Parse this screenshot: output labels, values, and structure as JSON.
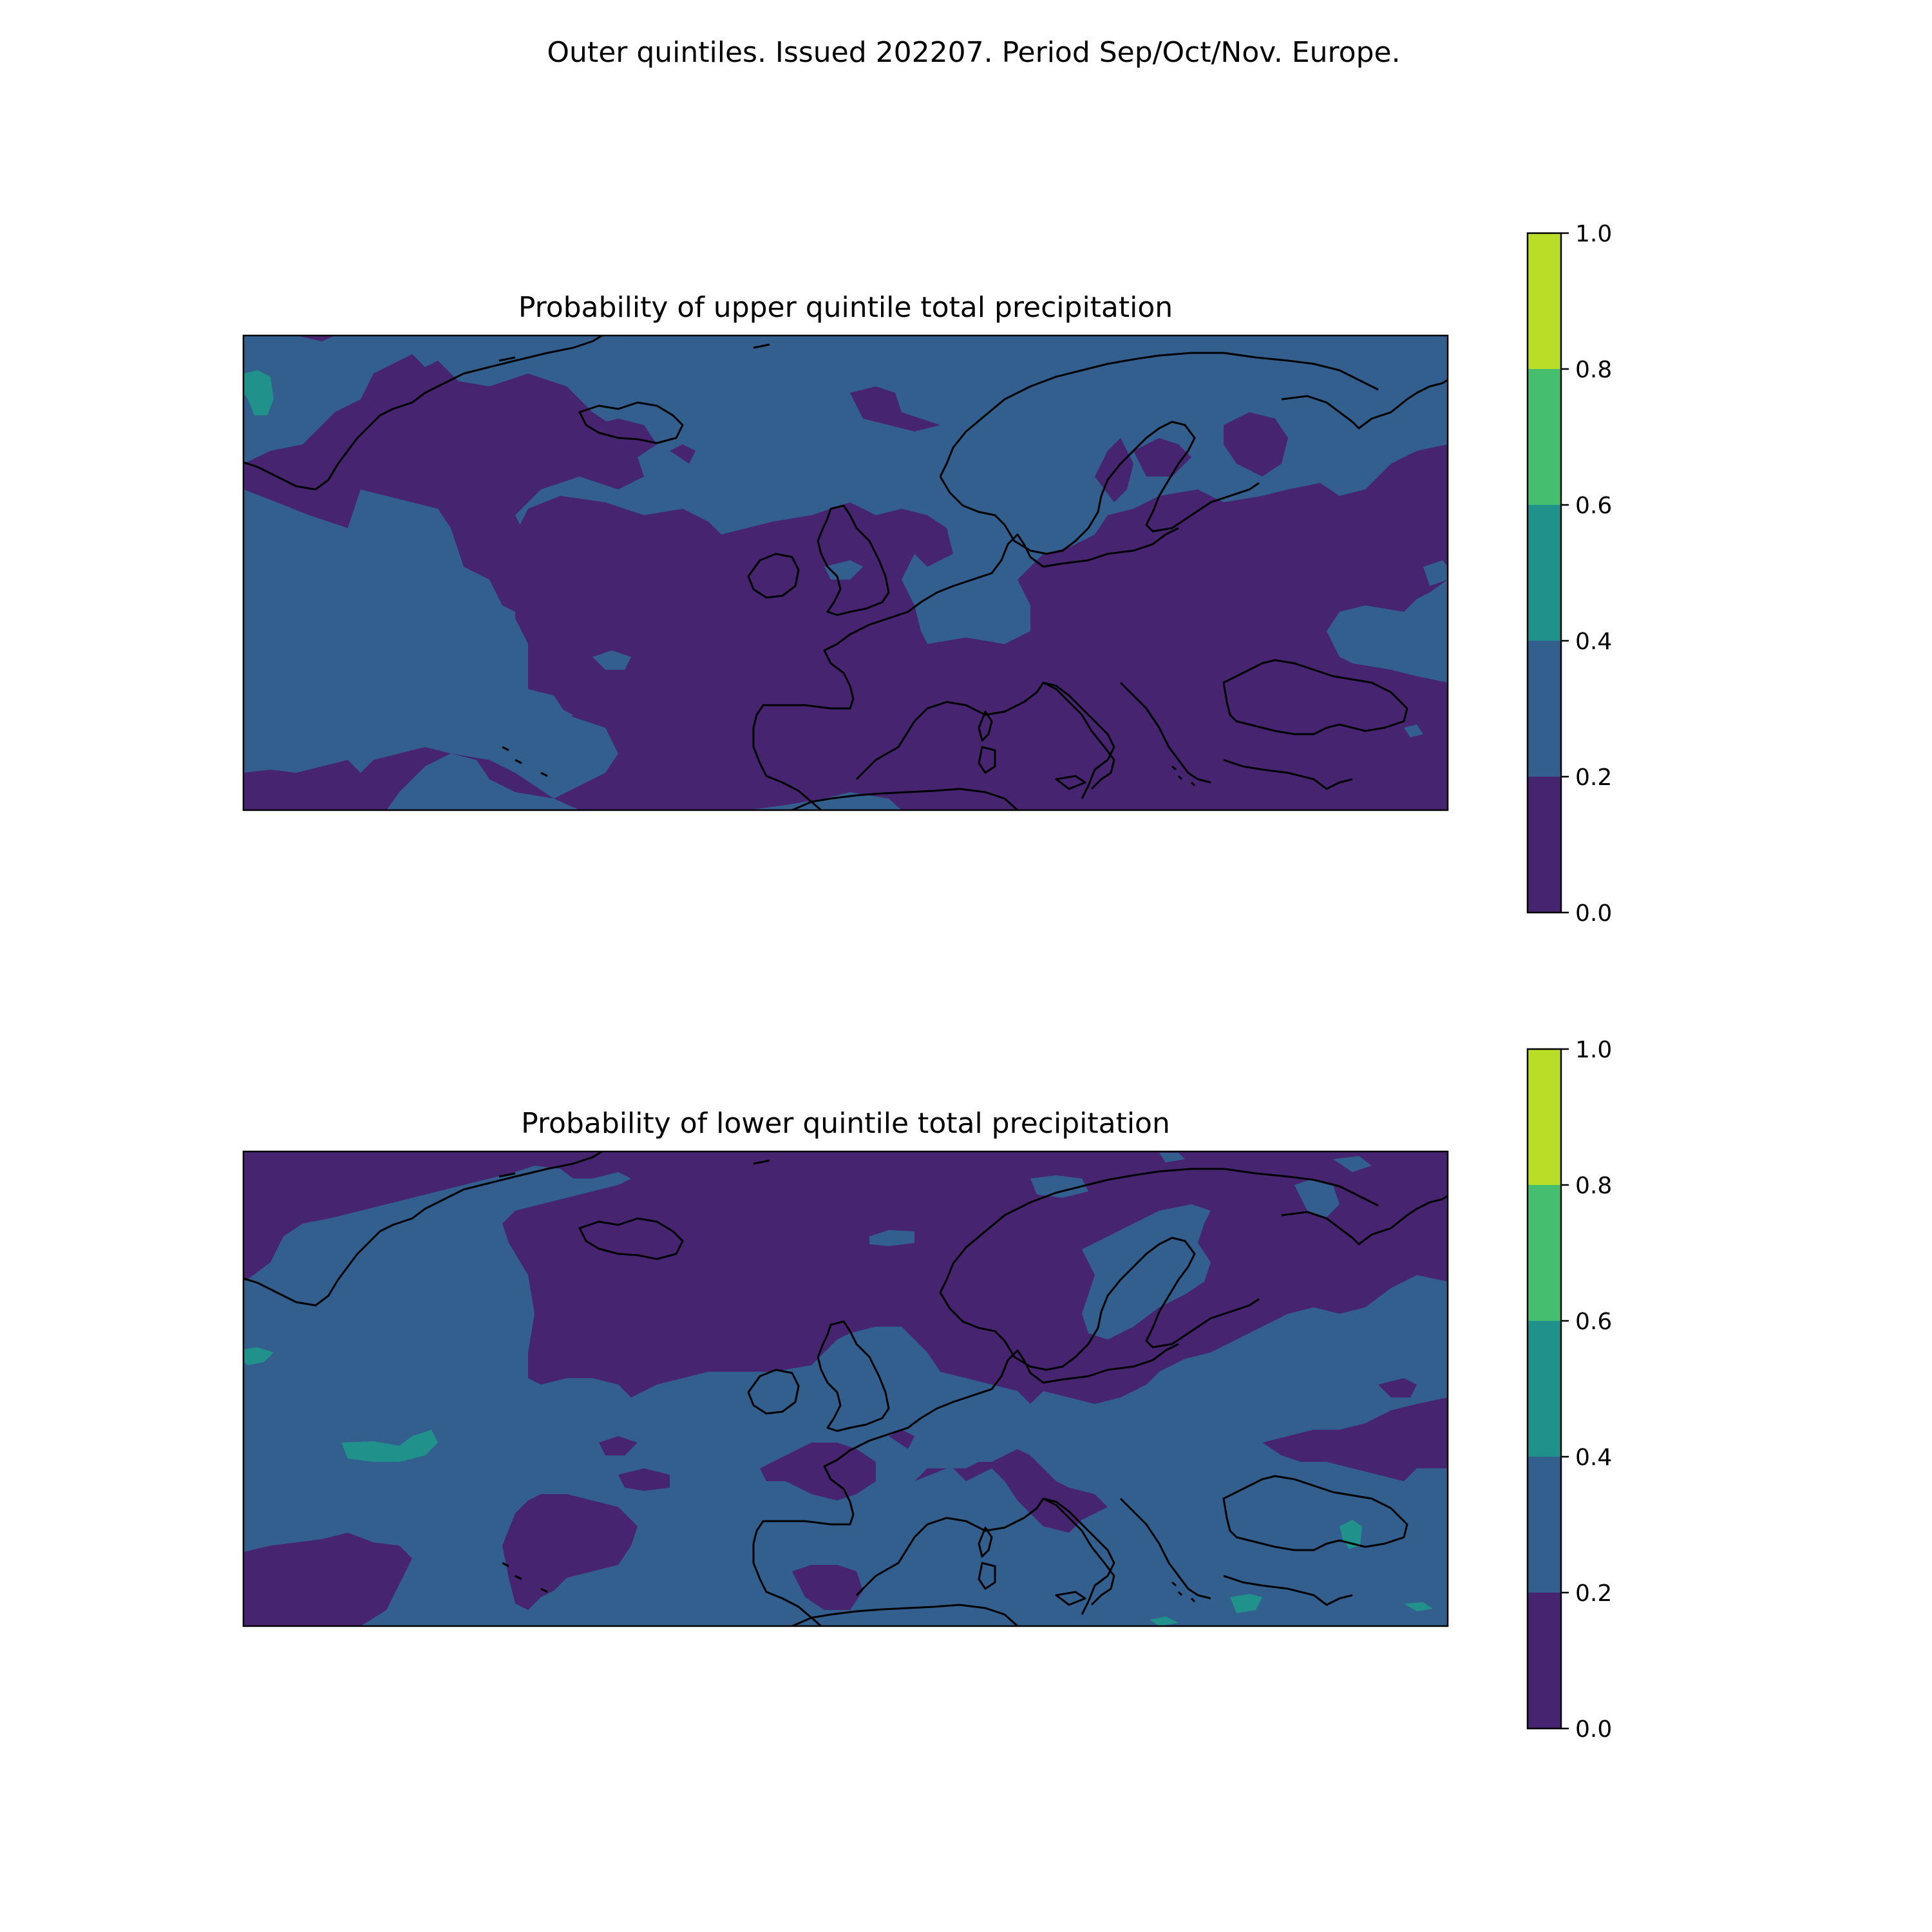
{
  "figure": {
    "suptitle": "Outer quintiles. Issued 202207. Period Sep/Oct/Nov. Europe."
  },
  "colors": {
    "levels": [
      "#440154",
      "#31688e",
      "#21918c",
      "#35b779",
      "#fde725"
    ],
    "band_0_0_0_2": "#46246f",
    "band_0_2_0_4": "#325f8d",
    "band_0_4_0_6": "#21918c",
    "band_0_6_0_8": "#45bf6f",
    "band_0_8_1_0": "#bade28",
    "coastline": "#000000",
    "frame": "#000000"
  },
  "chart_data": [
    {
      "type": "heatmap",
      "title": "Probability of upper quintile total precipitation",
      "colorbar": {
        "range": [
          0.0,
          1.0
        ],
        "ticks": [
          "0.0",
          "0.2",
          "0.4",
          "0.6",
          "0.8",
          "1.0"
        ],
        "bands": [
          {
            "from": 0.0,
            "to": 0.2,
            "color": "#46246f"
          },
          {
            "from": 0.2,
            "to": 0.4,
            "color": "#325f8d"
          },
          {
            "from": 0.4,
            "to": 0.6,
            "color": "#21918c"
          },
          {
            "from": 0.6,
            "to": 0.8,
            "color": "#45bf6f"
          },
          {
            "from": 0.8,
            "to": 1.0,
            "color": "#bade28"
          }
        ]
      },
      "dominant_band": "0.0-0.2",
      "grid": false
    },
    {
      "type": "heatmap",
      "title": "Probability of lower quintile total precipitation",
      "colorbar": {
        "range": [
          0.0,
          1.0
        ],
        "ticks": [
          "0.0",
          "0.2",
          "0.4",
          "0.6",
          "0.8",
          "1.0"
        ],
        "bands": [
          {
            "from": 0.0,
            "to": 0.2,
            "color": "#46246f"
          },
          {
            "from": 0.2,
            "to": 0.4,
            "color": "#325f8d"
          },
          {
            "from": 0.4,
            "to": 0.6,
            "color": "#21918c"
          },
          {
            "from": 0.6,
            "to": 0.8,
            "color": "#45bf6f"
          },
          {
            "from": 0.8,
            "to": 1.0,
            "color": "#bade28"
          }
        ]
      },
      "dominant_band": "0.2-0.4",
      "grid": false
    }
  ]
}
